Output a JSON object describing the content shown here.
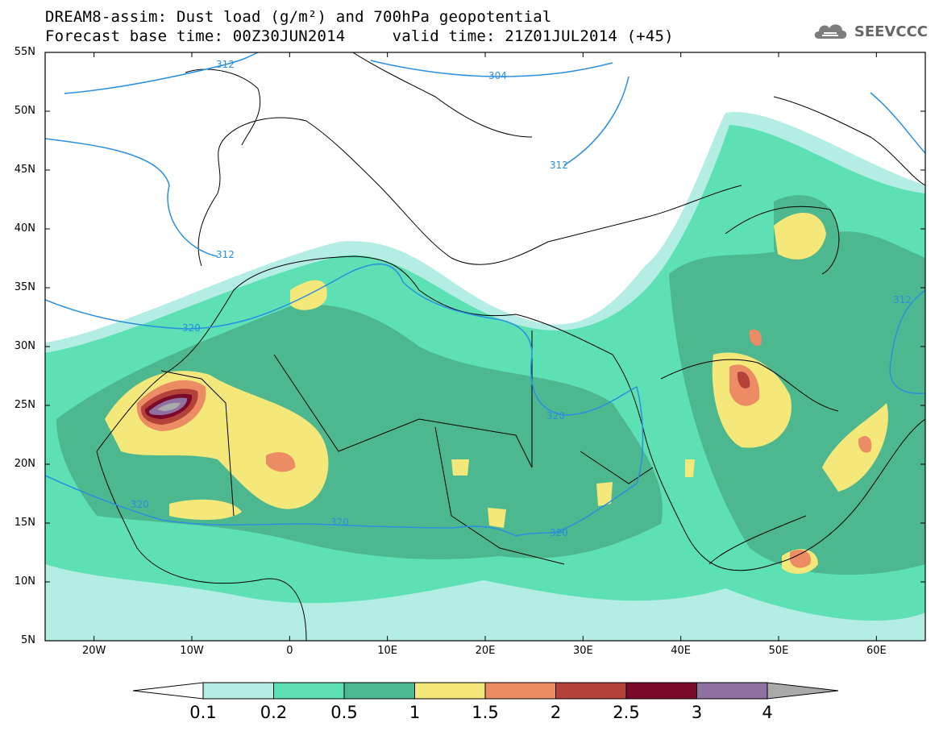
{
  "title": {
    "line1": "DREAM8-assim: Dust load (g/m²) and 700hPa geopotential",
    "line2": "Forecast base time: 00Z30JUN2014     valid time: 21Z01JUL2014 (+45)"
  },
  "logo": {
    "text": "SEEVCCC",
    "icon": "cloud-icon"
  },
  "axes": {
    "lat_labels": [
      "55N",
      "50N",
      "45N",
      "40N",
      "35N",
      "30N",
      "25N",
      "20N",
      "15N",
      "10N",
      "5N"
    ],
    "lon_labels": [
      "20W",
      "10W",
      "0",
      "10E",
      "20E",
      "30E",
      "40E",
      "50E",
      "60E"
    ],
    "lon_range": [
      -25,
      65
    ],
    "lat_range": [
      5,
      55
    ]
  },
  "colorbar": {
    "levels": [
      "0.1",
      "0.2",
      "0.5",
      "1",
      "1.5",
      "2",
      "2.5",
      "3",
      "4"
    ],
    "colors": [
      "#b4ede4",
      "#5ce0b4",
      "#4db88f",
      "#f5e87a",
      "#ec8c64",
      "#b4423a",
      "#7a0a2a",
      "#9070a0"
    ],
    "under_color": "#ffffff",
    "over_color": "#aaaaaa"
  },
  "contours": {
    "color": "#2a8fe0",
    "labels": [
      "304",
      "312",
      "312",
      "312",
      "312",
      "320",
      "320",
      "320",
      "320",
      "320"
    ]
  }
}
